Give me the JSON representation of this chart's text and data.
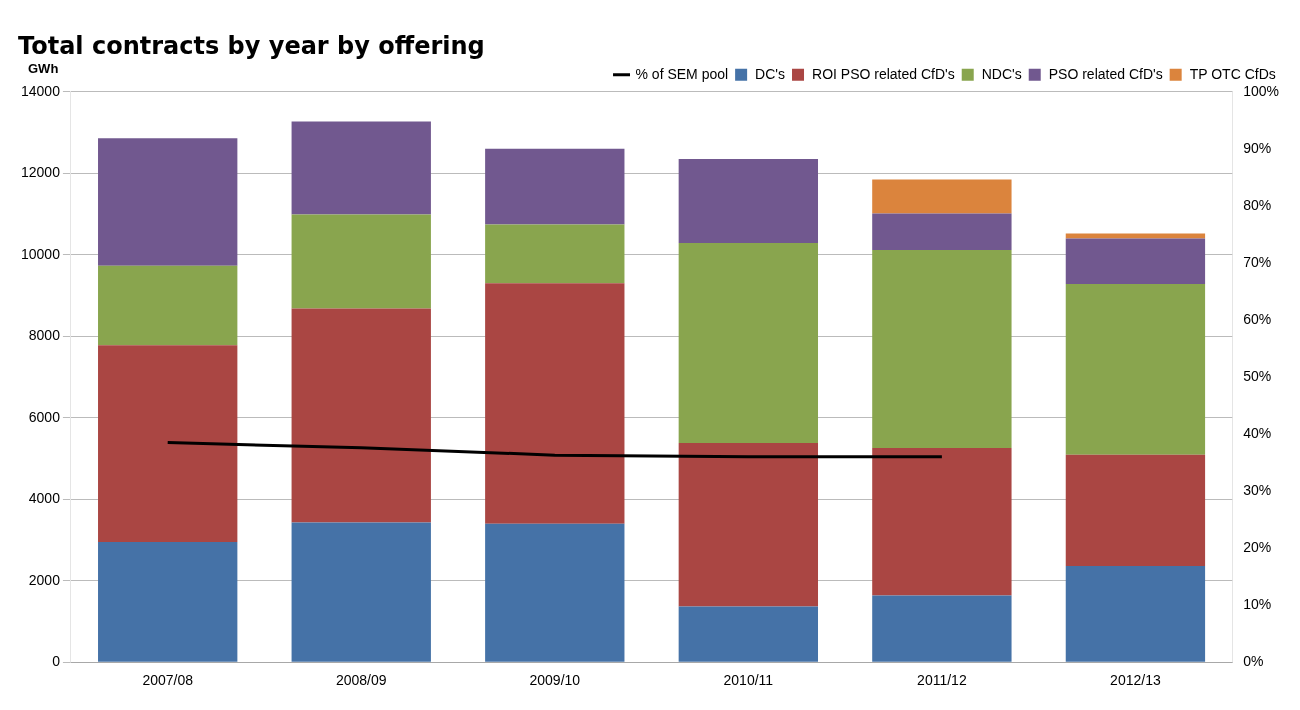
{
  "chart_data": {
    "type": "bar",
    "title": "Total contracts by year by offering",
    "ylabel": "GWh",
    "categories": [
      "2007/08",
      "2008/09",
      "2009/10",
      "2010/11",
      "2011/12",
      "2012/13"
    ],
    "stacked": true,
    "series": [
      {
        "name": "DC's",
        "color": "#4572a7",
        "values": [
          2950,
          3430,
          3400,
          1370,
          1640,
          2360
        ]
      },
      {
        "name": "ROI PSO related CfD's",
        "color": "#aa4643",
        "values": [
          4830,
          5250,
          5900,
          4010,
          3620,
          2730
        ]
      },
      {
        "name": "NDC's",
        "color": "#89a54e",
        "values": [
          1950,
          2310,
          1440,
          4910,
          4860,
          4190
        ]
      },
      {
        "name": "PSO related CfD's",
        "color": "#71588f",
        "values": [
          3130,
          2280,
          1860,
          2060,
          890,
          1120
        ]
      },
      {
        "name": "TP OTC CfDs",
        "color": "#db843d",
        "values": [
          null,
          null,
          null,
          null,
          840,
          120
        ]
      },
      {
        "name": "% of SEM pool",
        "type": "line",
        "axis": "y2",
        "color": "#000000",
        "values": [
          38.5,
          37.6,
          36.3,
          36.0,
          36.0,
          null
        ]
      }
    ],
    "ylim": [
      0,
      14000
    ],
    "yticks": [
      0,
      2000,
      4000,
      6000,
      8000,
      10000,
      12000,
      14000
    ],
    "y2lim": [
      0,
      100
    ],
    "y2ticks": [
      {
        "value": 0,
        "label": "0%"
      },
      {
        "value": 10,
        "label": "10%"
      },
      {
        "value": 20,
        "label": "20%"
      },
      {
        "value": 30,
        "label": "30%"
      },
      {
        "value": 40,
        "label": "40%"
      },
      {
        "value": 50,
        "label": "50%"
      },
      {
        "value": 60,
        "label": "60%"
      },
      {
        "value": 70,
        "label": "70%"
      },
      {
        "value": 80,
        "label": "80%"
      },
      {
        "value": 90,
        "label": "90%"
      },
      {
        "value": 100,
        "label": "100%"
      }
    ],
    "grid": "y",
    "legend": "top right",
    "marker": "none"
  }
}
